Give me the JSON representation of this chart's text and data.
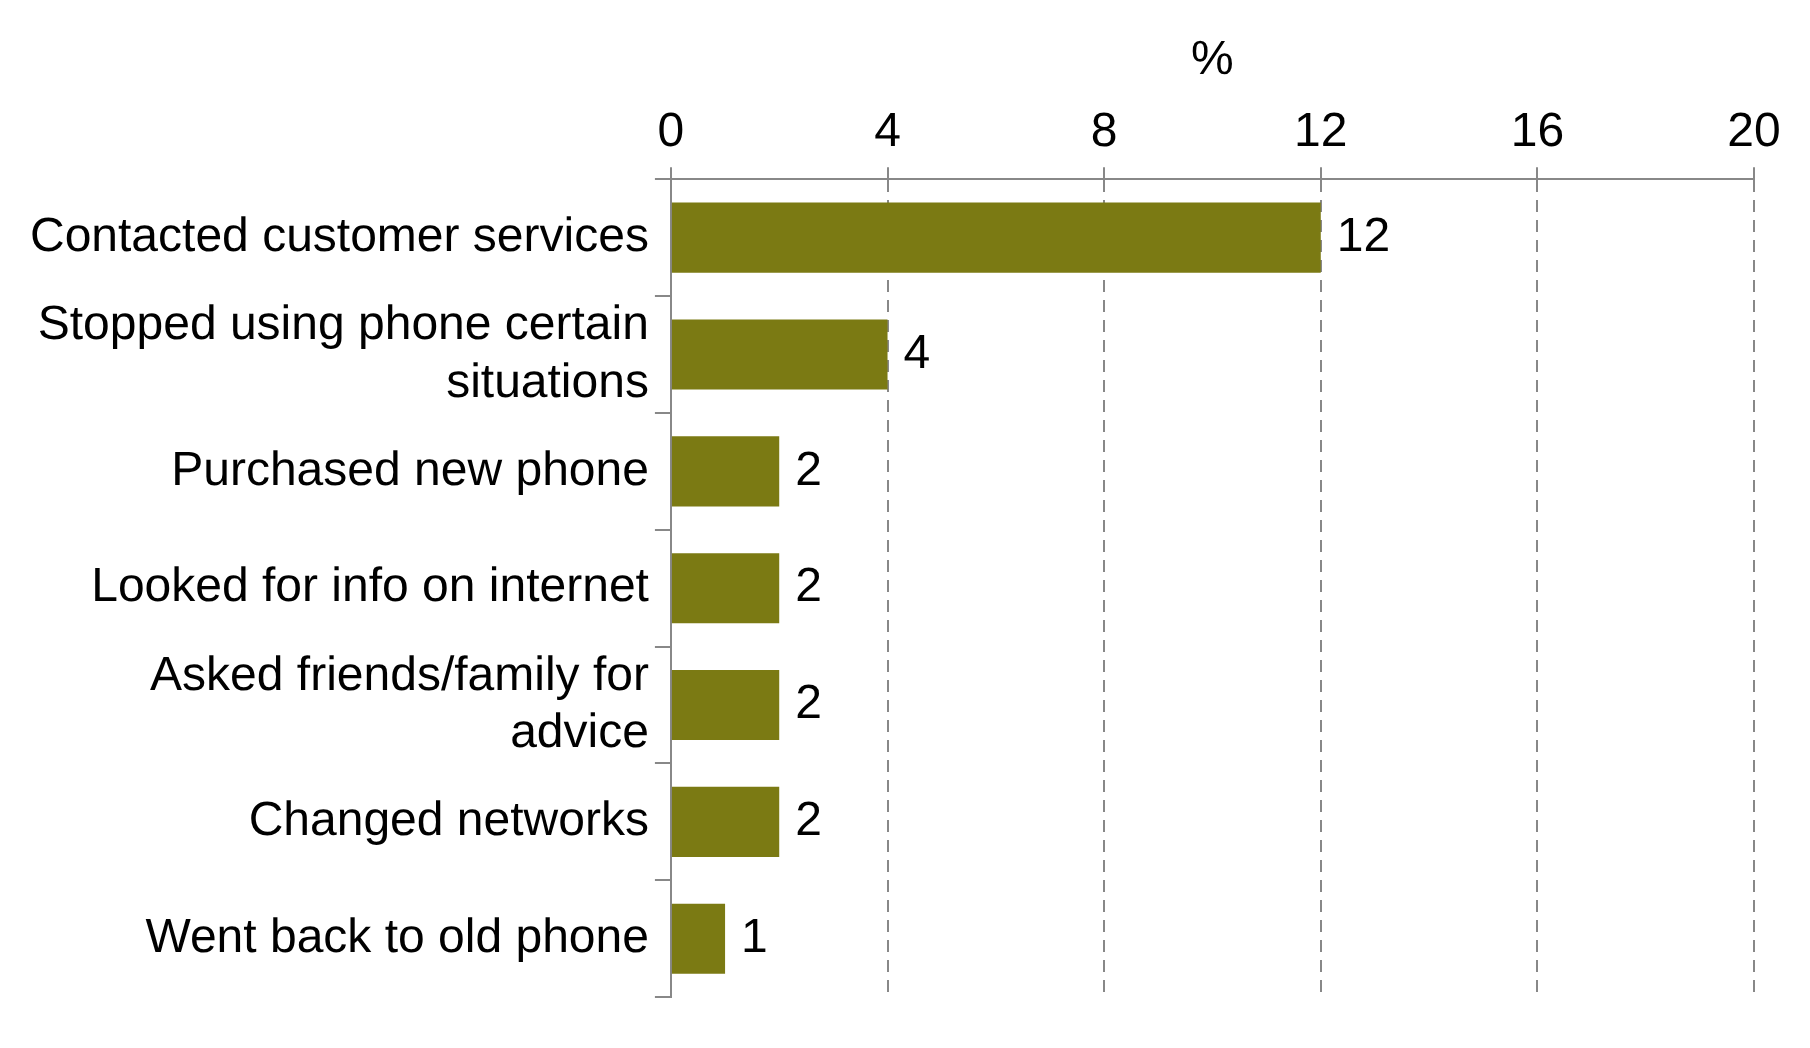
{
  "chart_data": {
    "type": "bar",
    "orientation": "horizontal",
    "xlabel": "%",
    "categories": [
      "Contacted customer services",
      "Stopped using phone certain situations",
      "Purchased new phone",
      "Looked for info on internet",
      "Asked friends/family for advice",
      "Changed networks",
      "Went back to old phone"
    ],
    "values": [
      12,
      4,
      2,
      2,
      2,
      2,
      1
    ],
    "color": "#7b7a13",
    "xlim": [
      0,
      20
    ],
    "xticks": [
      0,
      4,
      8,
      12,
      16,
      20
    ],
    "grid": "x",
    "data_labels": true,
    "legend": false
  }
}
